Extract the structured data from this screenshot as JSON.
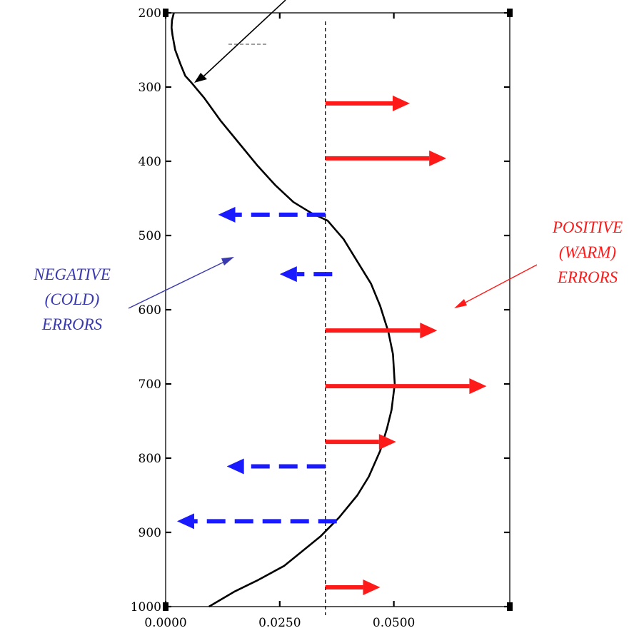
{
  "chart_data": {
    "type": "line",
    "title": "",
    "xlabel": "",
    "ylabel": "",
    "xlim": [
      0.0,
      0.0754
    ],
    "ylim": [
      200,
      1000
    ],
    "y_inverted": true,
    "x_ticks": [
      0.0,
      0.025,
      0.05
    ],
    "x_tick_labels": [
      "0.0000",
      "0.0250",
      "0.0500"
    ],
    "y_ticks": [
      200,
      300,
      400,
      500,
      600,
      700,
      800,
      900,
      1000
    ],
    "y_tick_labels": [
      "200",
      "300",
      "400",
      "500",
      "600",
      "700",
      "800",
      "900",
      "1000"
    ],
    "reference_x": 0.035,
    "series": [
      {
        "color": "#000000",
        "points": [
          [
            0.0018,
            200
          ],
          [
            0.0014,
            210
          ],
          [
            0.0013,
            220
          ],
          [
            0.0015,
            230
          ],
          [
            0.0018,
            240
          ],
          [
            0.0021,
            250
          ],
          [
            0.0033,
            270
          ],
          [
            0.0043,
            285
          ],
          [
            0.0055,
            293
          ],
          [
            0.0085,
            315
          ],
          [
            0.012,
            345
          ],
          [
            0.016,
            375
          ],
          [
            0.02,
            405
          ],
          [
            0.024,
            432
          ],
          [
            0.028,
            455
          ],
          [
            0.032,
            470
          ],
          [
            0.0355,
            480
          ],
          [
            0.039,
            505
          ],
          [
            0.042,
            535
          ],
          [
            0.045,
            565
          ],
          [
            0.047,
            595
          ],
          [
            0.0488,
            630
          ],
          [
            0.0498,
            660
          ],
          [
            0.0502,
            700
          ],
          [
            0.0495,
            735
          ],
          [
            0.0485,
            760
          ],
          [
            0.047,
            790
          ],
          [
            0.0445,
            825
          ],
          [
            0.042,
            850
          ],
          [
            0.038,
            880
          ],
          [
            0.034,
            905
          ],
          [
            0.03,
            925
          ],
          [
            0.026,
            945
          ],
          [
            0.02,
            965
          ],
          [
            0.015,
            980
          ],
          [
            0.0095,
            1000
          ]
        ]
      }
    ],
    "error_arrows": [
      {
        "kind": "positive",
        "y": 322,
        "x_start": 0.035,
        "x_end": 0.0535
      },
      {
        "kind": "positive",
        "y": 396,
        "x_start": 0.035,
        "x_end": 0.0615
      },
      {
        "kind": "negative",
        "y": 472,
        "x_start": 0.035,
        "x_end": 0.0115
      },
      {
        "kind": "negative",
        "y": 552,
        "x_start": 0.0365,
        "x_end": 0.025
      },
      {
        "kind": "positive",
        "y": 628,
        "x_start": 0.035,
        "x_end": 0.0595
      },
      {
        "kind": "positive",
        "y": 703,
        "x_start": 0.035,
        "x_end": 0.0703
      },
      {
        "kind": "positive",
        "y": 778,
        "x_start": 0.035,
        "x_end": 0.0505
      },
      {
        "kind": "negative",
        "y": 811,
        "x_start": 0.035,
        "x_end": 0.0134
      },
      {
        "kind": "negative",
        "y": 885,
        "x_start": 0.0375,
        "x_end": 0.0025
      },
      {
        "kind": "positive",
        "y": 974,
        "x_start": 0.035,
        "x_end": 0.047
      }
    ],
    "annotations": [
      {
        "kind": "negative",
        "lines": [
          "NEGATIVE",
          "(COLD)",
          "ERRORS"
        ],
        "color": "#3a3ab0"
      },
      {
        "kind": "positive",
        "lines": [
          "POSITIVE",
          "(WARM)",
          "ERRORS"
        ],
        "color": "#ff1a1a"
      }
    ],
    "colors": {
      "positive": "#ff1a1a",
      "negative": "#1a1aff",
      "reference_line": "#000000"
    }
  }
}
